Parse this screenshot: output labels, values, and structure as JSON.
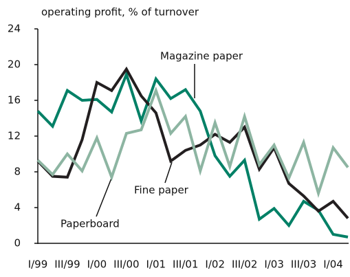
{
  "chart_data": {
    "type": "line",
    "title": "operating profit, % of turnover",
    "categories": [
      "I/99",
      null,
      "III/99",
      null,
      "I/00",
      null,
      "III/00",
      null,
      "I/01",
      null,
      "III/01",
      null,
      "I/02",
      null,
      "III/02",
      null,
      "I/03",
      null,
      "III/03",
      null,
      "I/04",
      null
    ],
    "series": [
      {
        "name": "Magazine paper",
        "color": "#008066",
        "values": [
          14.8,
          13.1,
          17.1,
          16.0,
          16.1,
          14.7,
          18.9,
          13.7,
          18.4,
          16.2,
          17.2,
          14.8,
          9.8,
          7.5,
          9.3,
          2.7,
          3.9,
          2.0,
          4.7,
          3.7,
          1.0,
          0.7
        ]
      },
      {
        "name": "Fine paper",
        "color": "#231f20",
        "values": [
          9.2,
          7.5,
          7.4,
          11.6,
          18.0,
          17.1,
          19.5,
          16.5,
          14.6,
          9.2,
          10.4,
          11.0,
          12.2,
          11.3,
          13.0,
          8.3,
          10.7,
          6.7,
          5.3,
          3.6,
          4.7,
          2.8
        ]
      },
      {
        "name": "Paperboard",
        "color": "#8db5a2",
        "values": [
          9.3,
          7.7,
          10.0,
          8.1,
          11.8,
          7.4,
          12.3,
          12.7,
          17.1,
          12.3,
          14.2,
          8.1,
          13.5,
          8.6,
          14.2,
          8.8,
          11.0,
          7.3,
          11.3,
          5.6,
          10.7,
          8.5
        ]
      }
    ],
    "ylim": [
      0,
      24
    ],
    "yticks": [
      0,
      4,
      8,
      12,
      16,
      20,
      24
    ],
    "grid": false
  }
}
